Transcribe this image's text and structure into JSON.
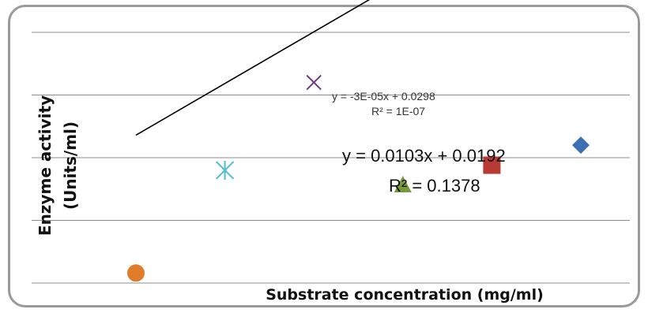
{
  "chart_data": {
    "type": "scatter",
    "title": "",
    "xlabel": "Substrate concentration (mg/ml)",
    "ylabel": [
      "Enzyme activity",
      "(Units/ml)"
    ],
    "xlim": [
      0.5,
      6.5
    ],
    "ylim": [
      0,
      0.05
    ],
    "grid": "horizontal",
    "series": [
      {
        "marker": "circle",
        "color": "#e07b2a",
        "points": [
          [
            1,
            0.002
          ]
        ]
      },
      {
        "marker": "star",
        "color": "#4fbcd0",
        "points": [
          [
            2,
            0.0225
          ]
        ]
      },
      {
        "marker": "x",
        "color": "#6b3a8c",
        "points": [
          [
            3,
            0.04
          ]
        ]
      },
      {
        "marker": "triangle",
        "color": "#7a9a3a",
        "points": [
          [
            4,
            0.0195
          ]
        ]
      },
      {
        "marker": "square",
        "color": "#b83a32",
        "points": [
          [
            5,
            0.0235
          ]
        ]
      },
      {
        "marker": "diamond",
        "color": "#3d6fb5",
        "points": [
          [
            6,
            0.0275
          ]
        ]
      }
    ],
    "trendlines": [
      {
        "slope": 0.0103,
        "intercept": 0.0192,
        "x_range": [
          1,
          6
        ],
        "color": "#000000"
      }
    ],
    "annotations": {
      "main_equation": "y = 0.0103x + 0.0192",
      "main_r2": "R² = 0.1378",
      "second_equation": "y = -3E-05x + 0.0298",
      "second_r2": "R² = 1E-07"
    }
  }
}
